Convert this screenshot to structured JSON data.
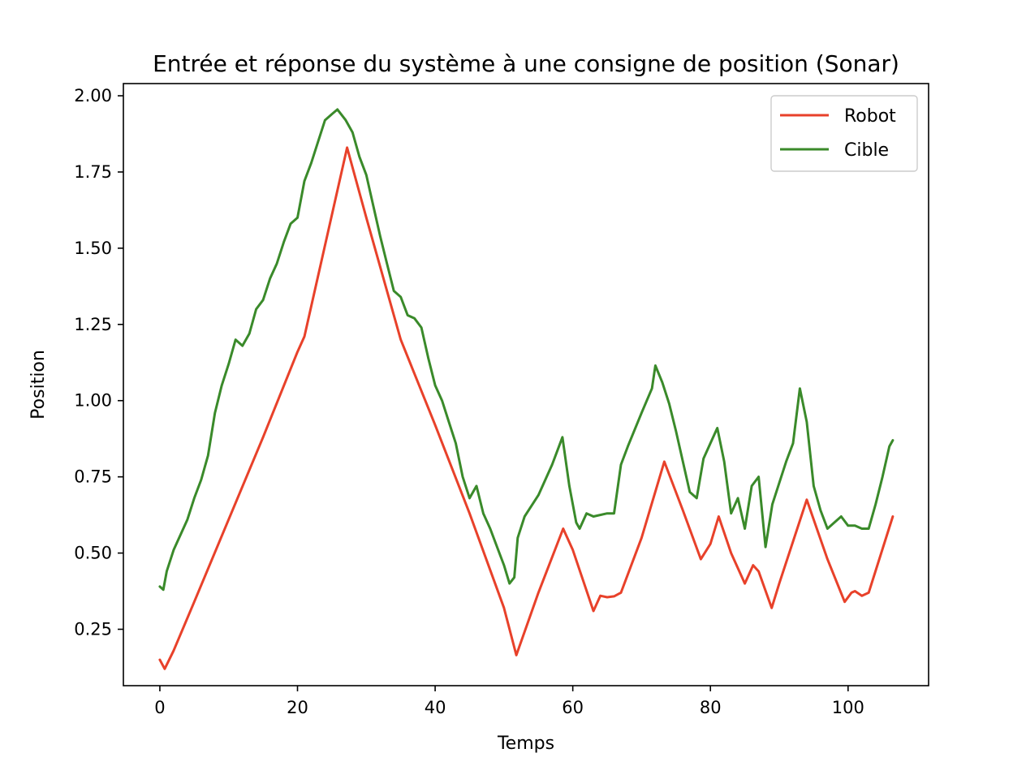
{
  "chart_data": {
    "type": "line",
    "title": "Entrée et réponse du système à une consigne de position (Sonar)",
    "xlabel": "Temps",
    "ylabel": "Position",
    "xlim": [
      -5.3,
      111.7
    ],
    "ylim": [
      0.065,
      2.04
    ],
    "xticks": [
      0,
      20,
      40,
      60,
      80,
      100
    ],
    "xtick_labels": [
      "0",
      "20",
      "40",
      "60",
      "80",
      "100"
    ],
    "yticks": [
      0.25,
      0.5,
      0.75,
      1.0,
      1.25,
      1.5,
      1.75,
      2.0
    ],
    "ytick_labels": [
      "0.25",
      "0.50",
      "0.75",
      "1.00",
      "1.25",
      "1.50",
      "1.75",
      "2.00"
    ],
    "grid": false,
    "legend_position": "top-right",
    "series": [
      {
        "name": "Robot",
        "color": "#e8412a",
        "x": [
          0,
          0.7,
          2,
          5,
          10,
          15,
          20,
          21,
          27.2,
          30,
          35,
          40,
          45,
          50,
          51.8,
          55,
          58.6,
          60,
          63,
          64,
          65,
          66,
          67,
          70,
          73.3,
          76,
          78.6,
          80,
          81.2,
          83,
          85,
          86.2,
          87,
          88.9,
          90,
          94,
          97,
          99.5,
          100.5,
          101,
          102,
          103,
          106.5
        ],
        "y": [
          0.15,
          0.12,
          0.18,
          0.34,
          0.61,
          0.88,
          1.16,
          1.21,
          1.83,
          1.6,
          1.2,
          0.92,
          0.63,
          0.32,
          0.165,
          0.37,
          0.58,
          0.51,
          0.31,
          0.36,
          0.355,
          0.358,
          0.37,
          0.55,
          0.8,
          0.64,
          0.48,
          0.53,
          0.62,
          0.5,
          0.4,
          0.46,
          0.44,
          0.32,
          0.4,
          0.675,
          0.48,
          0.34,
          0.37,
          0.375,
          0.36,
          0.37,
          0.62
        ]
      },
      {
        "name": "Cible",
        "color": "#3a8a2a",
        "x": [
          0,
          0.5,
          1,
          2,
          3,
          4,
          5,
          6,
          7,
          8,
          9,
          10,
          11,
          12,
          13,
          14,
          15,
          16,
          17,
          18,
          19,
          20,
          21,
          22,
          23,
          24,
          25,
          25.8,
          27,
          28,
          29,
          30,
          31,
          32,
          33,
          34,
          35,
          36,
          37,
          38,
          39,
          40,
          41,
          42,
          43,
          44,
          45,
          46,
          47,
          48,
          49,
          50,
          50.8,
          51.5,
          52,
          53,
          55,
          57,
          58.5,
          59.5,
          60.5,
          61,
          62,
          63,
          65,
          66,
          67,
          68,
          70,
          71.5,
          72,
          73,
          74,
          75,
          76,
          77,
          78,
          79,
          80,
          81,
          82,
          83,
          84,
          85,
          86,
          87,
          88,
          89,
          90,
          91,
          92,
          93,
          94,
          95,
          96,
          97,
          98,
          99,
          100,
          101,
          102,
          103,
          104,
          105,
          106,
          106.5
        ],
        "y": [
          0.39,
          0.38,
          0.44,
          0.51,
          0.56,
          0.61,
          0.68,
          0.74,
          0.82,
          0.96,
          1.05,
          1.12,
          1.2,
          1.18,
          1.22,
          1.3,
          1.33,
          1.4,
          1.45,
          1.52,
          1.58,
          1.6,
          1.72,
          1.78,
          1.85,
          1.92,
          1.94,
          1.955,
          1.92,
          1.88,
          1.8,
          1.74,
          1.64,
          1.54,
          1.45,
          1.36,
          1.34,
          1.28,
          1.27,
          1.24,
          1.14,
          1.05,
          1.0,
          0.93,
          0.86,
          0.75,
          0.68,
          0.72,
          0.63,
          0.58,
          0.52,
          0.46,
          0.4,
          0.42,
          0.55,
          0.62,
          0.69,
          0.79,
          0.88,
          0.72,
          0.6,
          0.58,
          0.63,
          0.62,
          0.63,
          0.63,
          0.79,
          0.85,
          0.96,
          1.04,
          1.115,
          1.06,
          0.99,
          0.9,
          0.8,
          0.7,
          0.68,
          0.81,
          0.86,
          0.91,
          0.8,
          0.63,
          0.68,
          0.58,
          0.72,
          0.75,
          0.52,
          0.66,
          0.73,
          0.8,
          0.86,
          1.04,
          0.93,
          0.72,
          0.64,
          0.58,
          0.6,
          0.62,
          0.59,
          0.59,
          0.58,
          0.58,
          0.66,
          0.75,
          0.85,
          0.87
        ]
      }
    ]
  }
}
